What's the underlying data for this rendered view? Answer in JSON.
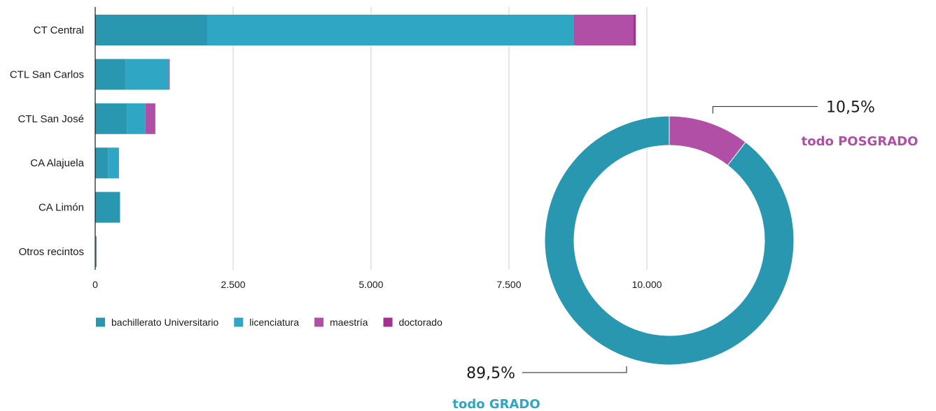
{
  "chart_data": [
    {
      "type": "bar",
      "orientation": "horizontal",
      "stacked": true,
      "categories": [
        "CT Central",
        "CTL San Carlos",
        "CTL San José",
        "CA Alajuela",
        "CA Limón",
        "Otros recintos"
      ],
      "series": [
        {
          "name": "bachillerato Universitario",
          "values": [
            2030,
            550,
            580,
            230,
            450,
            10
          ],
          "color": "#2a97b0"
        },
        {
          "name": "licenciatura",
          "values": [
            6650,
            780,
            330,
            190,
            0,
            10
          ],
          "color": "#2fa6c4"
        },
        {
          "name": "maestría",
          "values": [
            1070,
            20,
            180,
            10,
            0,
            5
          ],
          "color": "#b04fa5"
        },
        {
          "name": "doctorado",
          "values": [
            50,
            0,
            0,
            0,
            0,
            0
          ],
          "color": "#a2318f"
        }
      ],
      "xlim": [
        0,
        10000
      ],
      "x_ticks": [
        0,
        2500,
        5000,
        7500,
        10000
      ],
      "x_tick_labels": [
        "0",
        "2.500",
        "5.000",
        "7.500",
        "10.000"
      ],
      "grid": "vertical",
      "legend_position": "bottom-left"
    },
    {
      "type": "pie",
      "style": "donut",
      "slices": [
        {
          "label": "todo POSGRADO",
          "value": 10.5,
          "display": "10,5%",
          "color": "#b04fa5"
        },
        {
          "label": "todo GRADO",
          "value": 89.5,
          "display": "89,5%",
          "color": "#2a97b0"
        }
      ]
    }
  ]
}
